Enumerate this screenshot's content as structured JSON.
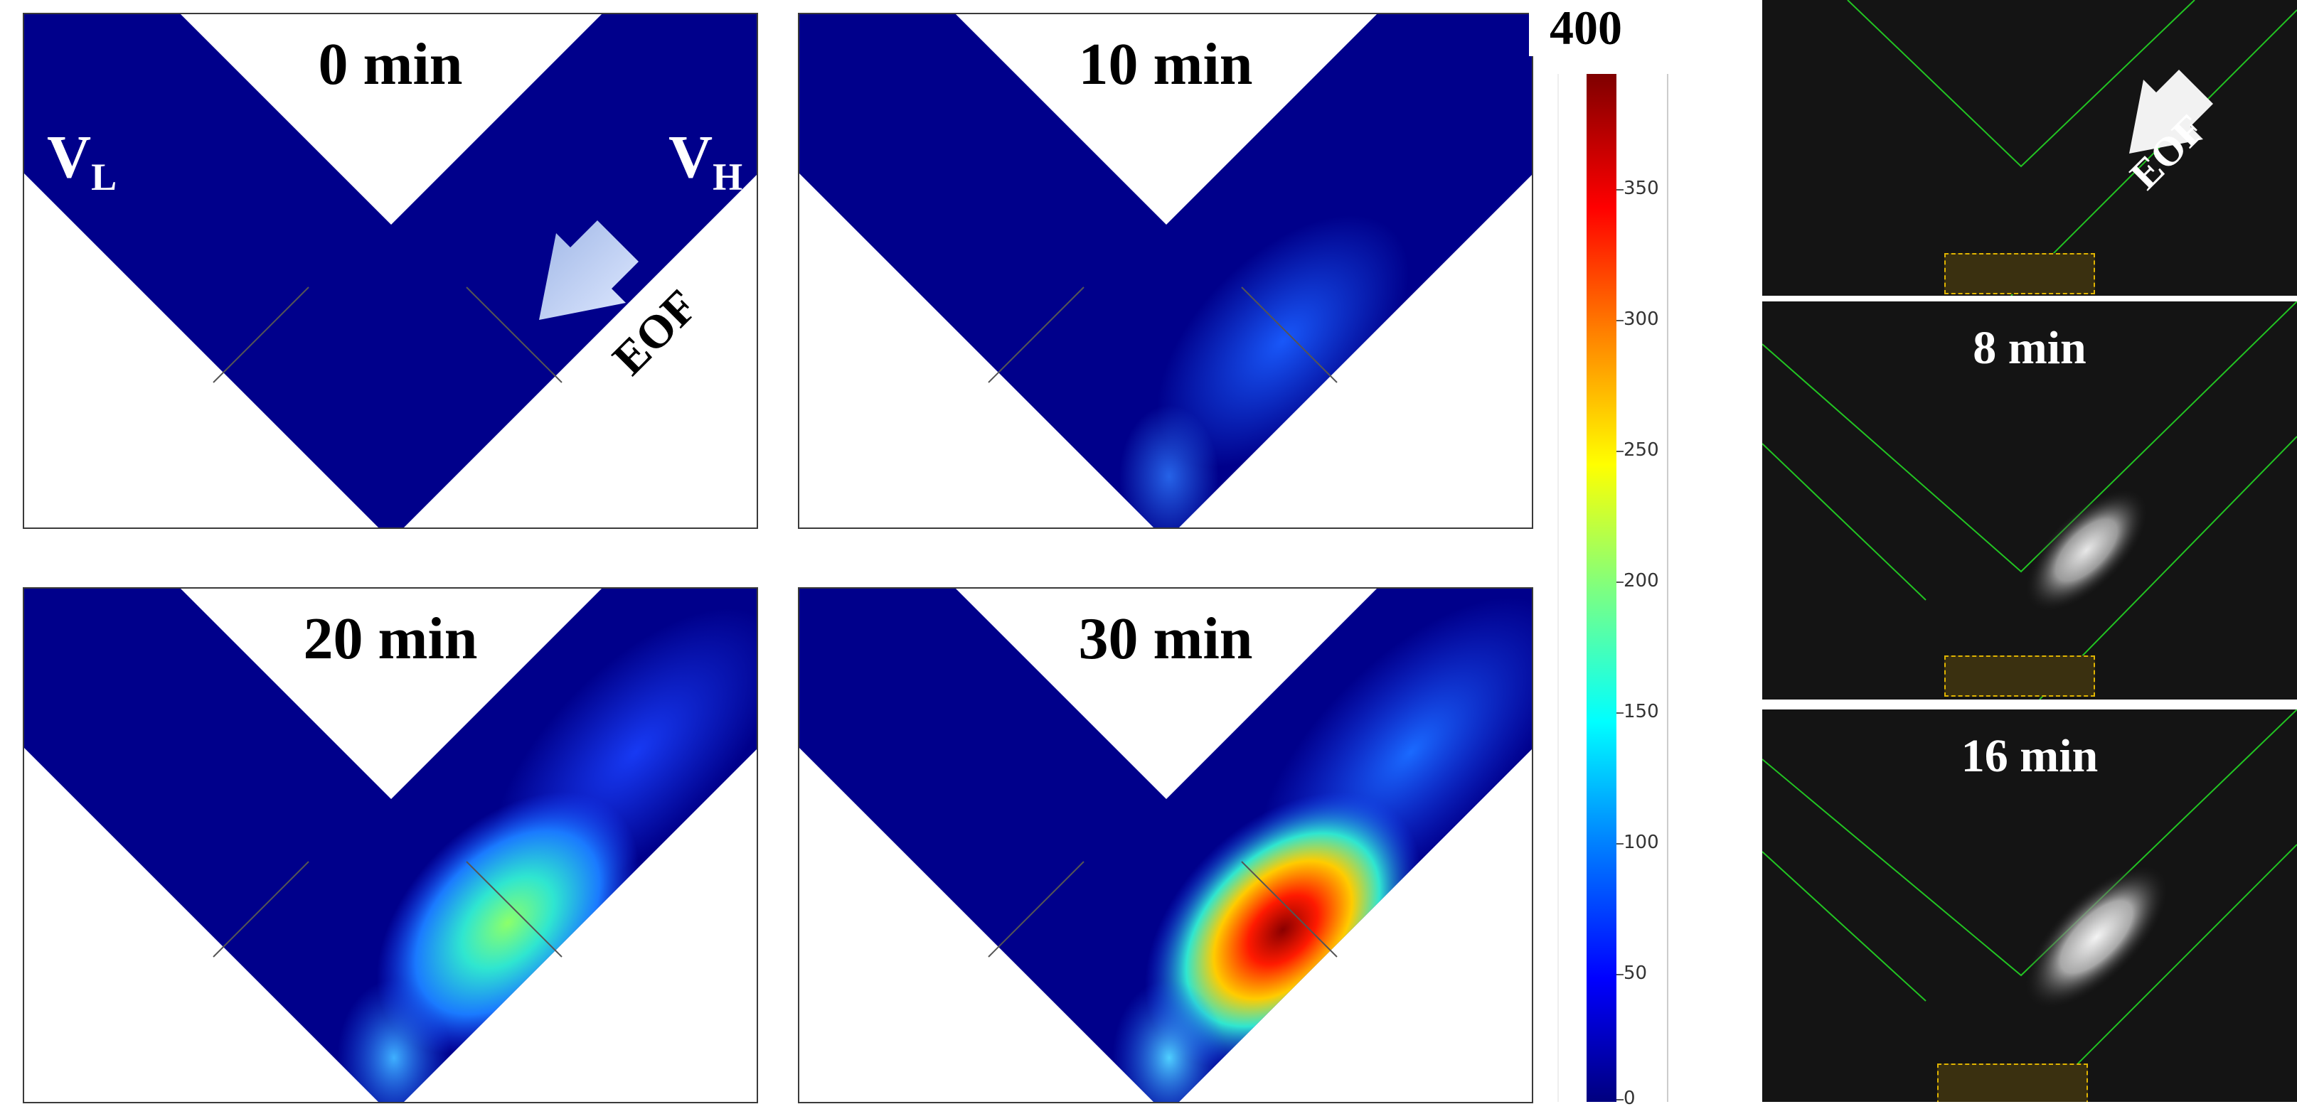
{
  "simulation": {
    "panels": [
      {
        "time": "0 min"
      },
      {
        "time": "10 min"
      },
      {
        "time": "20 min"
      },
      {
        "time": "30 min"
      }
    ],
    "labels": {
      "left_symbol": "V",
      "left_sub": "L",
      "right_symbol": "V",
      "right_sub": "H",
      "flow": "EOF"
    },
    "channel_color": "#00008b"
  },
  "colorbar": {
    "max_label": "400",
    "ticks": [
      "350",
      "300",
      "250",
      "200",
      "150",
      "100",
      "50",
      "0"
    ],
    "colormap": "jet"
  },
  "experiment": {
    "panels": [
      {
        "time": ""
      },
      {
        "time": "8 min"
      },
      {
        "time": "16 min"
      }
    ],
    "flow": "EOF",
    "guide_color": "#22c422",
    "electrode_color": "#e0b400"
  }
}
